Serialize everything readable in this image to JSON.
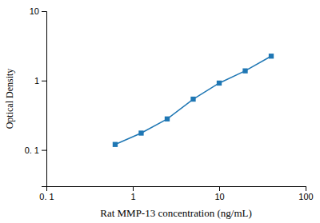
{
  "chart_data": {
    "type": "line",
    "x": [
      0.625,
      1.25,
      2.5,
      5.0,
      10.0,
      20.0,
      40.0
    ],
    "values": [
      0.12,
      0.175,
      0.28,
      0.54,
      0.92,
      1.38,
      2.25
    ],
    "xlabel": "Rat MMP-13 concentration (ng/mL)",
    "ylabel": "Optical Density",
    "xlim": [
      0.1,
      100
    ],
    "ylim": [
      0.03,
      10
    ],
    "xticks": [
      {
        "value": 0.1,
        "label": "0. 1"
      },
      1,
      10,
      100
    ],
    "yticks": [
      {
        "value": 0.1,
        "label": "0. 1"
      },
      1,
      10
    ],
    "log": true,
    "marker": "square",
    "line_style": "solid",
    "grid": false
  }
}
